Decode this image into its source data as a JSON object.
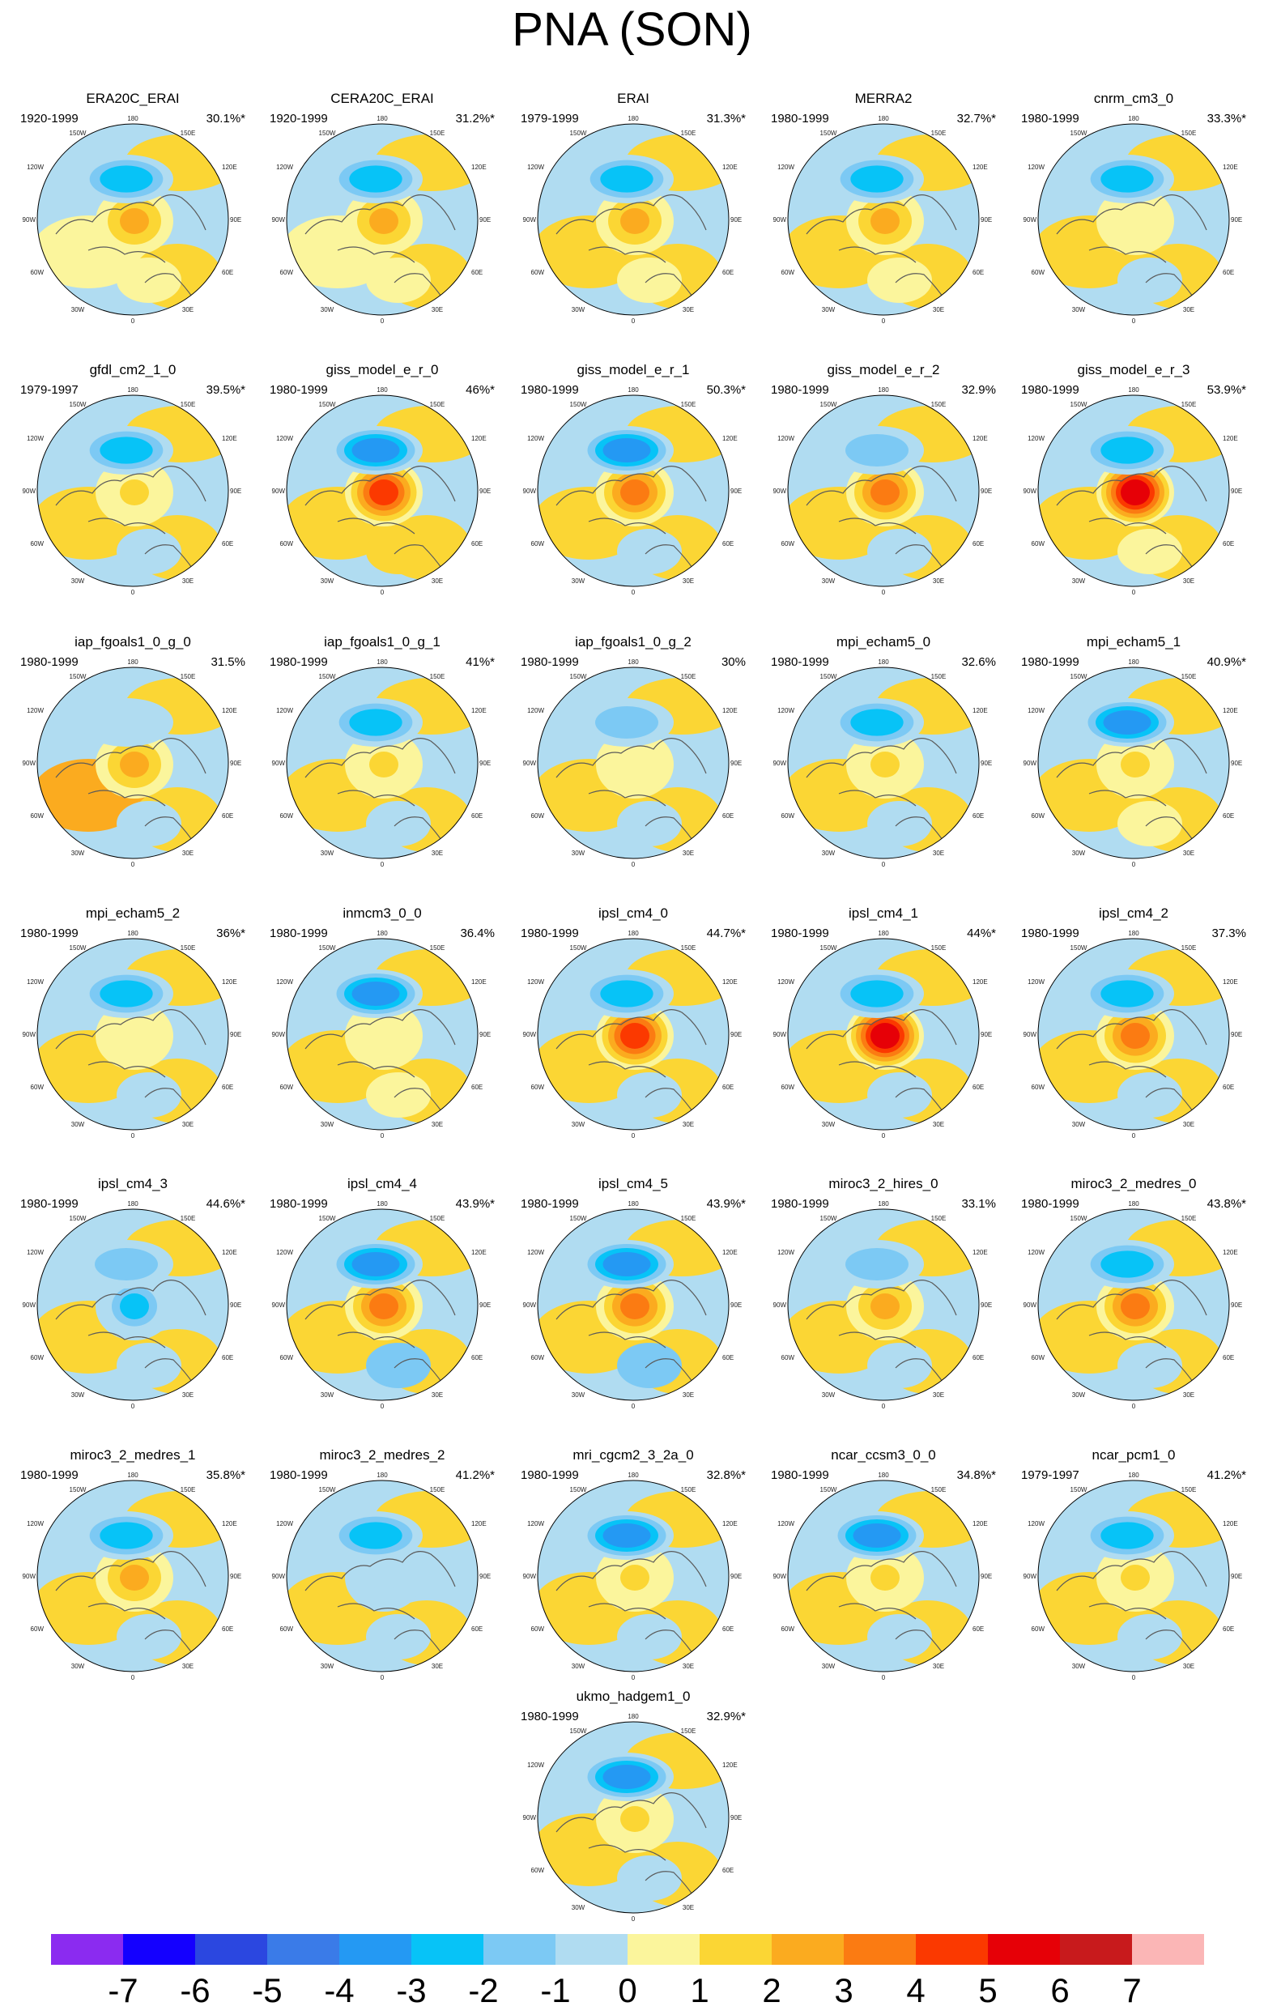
{
  "title": "PNA (SON)",
  "map_labels": {
    "top": "180",
    "bottom": "0",
    "top_left": "150W",
    "top_right": "150E",
    "upper_left": "120W",
    "upper_right": "120E",
    "mid_left": "90W",
    "mid_right": "90E",
    "lower_left": "60W",
    "lower_right": "60E",
    "bottom_left": "30W",
    "bottom_right": "30E"
  },
  "panels": [
    {
      "name": "ERA20C_ERAI",
      "period": "1920-1999",
      "percent": "30.1%*",
      "anomaly": {
        "arctic": 2,
        "pacific": -3,
        "northwest": 0,
        "europe": 0
      }
    },
    {
      "name": "CERA20C_ERAI",
      "period": "1920-1999",
      "percent": "31.2%*",
      "anomaly": {
        "arctic": 2,
        "pacific": -3,
        "northwest": 0,
        "europe": 0
      }
    },
    {
      "name": "ERAI",
      "period": "1979-1999",
      "percent": "31.3%*",
      "anomaly": {
        "arctic": 2,
        "pacific": -3,
        "northwest": 1,
        "europe": 0
      }
    },
    {
      "name": "MERRA2",
      "period": "1980-1999",
      "percent": "32.7%*",
      "anomaly": {
        "arctic": 2,
        "pacific": -3,
        "northwest": 1,
        "europe": 0
      }
    },
    {
      "name": "cnrm_cm3_0",
      "period": "1980-1999",
      "percent": "33.3%*",
      "anomaly": {
        "arctic": 0,
        "pacific": -3,
        "northwest": 1,
        "europe": -1
      }
    },
    {
      "name": "gfdl_cm2_1_0",
      "period": "1979-1997",
      "percent": "39.5%*",
      "anomaly": {
        "arctic": 1,
        "pacific": -3,
        "northwest": 1,
        "europe": -1
      }
    },
    {
      "name": "giss_model_e_r_0",
      "period": "1980-1999",
      "percent": "46%*",
      "anomaly": {
        "arctic": 4,
        "pacific": -4,
        "northwest": 1,
        "europe": 1
      }
    },
    {
      "name": "giss_model_e_r_1",
      "period": "1980-1999",
      "percent": "50.3%*",
      "anomaly": {
        "arctic": 3,
        "pacific": -4,
        "northwest": 1,
        "europe": -1
      }
    },
    {
      "name": "giss_model_e_r_2",
      "period": "1980-1999",
      "percent": "32.9%",
      "anomaly": {
        "arctic": 3,
        "pacific": -2,
        "northwest": 1,
        "europe": -1
      }
    },
    {
      "name": "giss_model_e_r_3",
      "period": "1980-1999",
      "percent": "53.9%*",
      "anomaly": {
        "arctic": 5,
        "pacific": -3,
        "northwest": 1,
        "europe": 0
      }
    },
    {
      "name": "iap_fgoals1_0_g_0",
      "period": "1980-1999",
      "percent": "31.5%",
      "anomaly": {
        "arctic": 2,
        "pacific": -1,
        "northwest": 2,
        "europe": -1
      }
    },
    {
      "name": "iap_fgoals1_0_g_1",
      "period": "1980-1999",
      "percent": "41%*",
      "anomaly": {
        "arctic": 1,
        "pacific": -3,
        "northwest": 1,
        "europe": -1
      }
    },
    {
      "name": "iap_fgoals1_0_g_2",
      "period": "1980-1999",
      "percent": "30%",
      "anomaly": {
        "arctic": 0,
        "pacific": -2,
        "northwest": 1,
        "europe": -1
      }
    },
    {
      "name": "mpi_echam5_0",
      "period": "1980-1999",
      "percent": "32.6%",
      "anomaly": {
        "arctic": 1,
        "pacific": -3,
        "northwest": 1,
        "europe": -1
      }
    },
    {
      "name": "mpi_echam5_1",
      "period": "1980-1999",
      "percent": "40.9%*",
      "anomaly": {
        "arctic": 1,
        "pacific": -4,
        "northwest": 1,
        "europe": 0
      }
    },
    {
      "name": "mpi_echam5_2",
      "period": "1980-1999",
      "percent": "36%*",
      "anomaly": {
        "arctic": 0,
        "pacific": -3,
        "northwest": 1,
        "europe": -1
      }
    },
    {
      "name": "inmcm3_0_0",
      "period": "1980-1999",
      "percent": "36.4%",
      "anomaly": {
        "arctic": 0,
        "pacific": -4,
        "northwest": 1,
        "europe": 0
      }
    },
    {
      "name": "ipsl_cm4_0",
      "period": "1980-1999",
      "percent": "44.7%*",
      "anomaly": {
        "arctic": 4,
        "pacific": -3,
        "northwest": 1,
        "europe": -1
      }
    },
    {
      "name": "ipsl_cm4_1",
      "period": "1980-1999",
      "percent": "44%*",
      "anomaly": {
        "arctic": 5,
        "pacific": -3,
        "northwest": 1,
        "europe": -1
      }
    },
    {
      "name": "ipsl_cm4_2",
      "period": "1980-1999",
      "percent": "37.3%",
      "anomaly": {
        "arctic": 3,
        "pacific": -3,
        "northwest": 1,
        "europe": -1
      }
    },
    {
      "name": "ipsl_cm4_3",
      "period": "1980-1999",
      "percent": "44.6%*",
      "anomaly": {
        "arctic": -3,
        "pacific": -2,
        "northwest": 1,
        "europe": -1
      }
    },
    {
      "name": "ipsl_cm4_4",
      "period": "1980-1999",
      "percent": "43.9%*",
      "anomaly": {
        "arctic": 3,
        "pacific": -4,
        "northwest": 1,
        "europe": -2
      }
    },
    {
      "name": "ipsl_cm4_5",
      "period": "1980-1999",
      "percent": "43.9%*",
      "anomaly": {
        "arctic": 3,
        "pacific": -4,
        "northwest": 1,
        "europe": -2
      }
    },
    {
      "name": "miroc3_2_hires_0",
      "period": "1980-1999",
      "percent": "33.1%",
      "anomaly": {
        "arctic": 2,
        "pacific": -2,
        "northwest": 1,
        "europe": -1
      }
    },
    {
      "name": "miroc3_2_medres_0",
      "period": "1980-1999",
      "percent": "43.8%*",
      "anomaly": {
        "arctic": 3,
        "pacific": -3,
        "northwest": 1,
        "europe": -1
      }
    },
    {
      "name": "miroc3_2_medres_1",
      "period": "1980-1999",
      "percent": "35.8%*",
      "anomaly": {
        "arctic": 2,
        "pacific": -3,
        "northwest": 1,
        "europe": -1
      }
    },
    {
      "name": "miroc3_2_medres_2",
      "period": "1980-1999",
      "percent": "41.2%*",
      "anomaly": {
        "arctic": -1,
        "pacific": -3,
        "northwest": 1,
        "europe": -1
      }
    },
    {
      "name": "mri_cgcm2_3_2a_0",
      "period": "1980-1999",
      "percent": "32.8%*",
      "anomaly": {
        "arctic": 1,
        "pacific": -4,
        "northwest": 1,
        "europe": -1
      }
    },
    {
      "name": "ncar_ccsm3_0_0",
      "period": "1980-1999",
      "percent": "34.8%*",
      "anomaly": {
        "arctic": 1,
        "pacific": -4,
        "northwest": 1,
        "europe": -1
      }
    },
    {
      "name": "ncar_pcm1_0",
      "period": "1979-1997",
      "percent": "41.2%*",
      "anomaly": {
        "arctic": 1,
        "pacific": -3,
        "northwest": 1,
        "europe": -1
      }
    },
    {
      "name": "ukmo_hadgem1_0",
      "period": "1980-1999",
      "percent": "32.9%*",
      "anomaly": {
        "arctic": 1,
        "pacific": -4,
        "northwest": 1,
        "europe": -1
      }
    }
  ],
  "colorbar": {
    "ticks": [
      "-7",
      "-6",
      "-5",
      "-4",
      "-3",
      "-2",
      "-1",
      "0",
      "1",
      "2",
      "3",
      "4",
      "5",
      "6",
      "7"
    ],
    "colors": [
      "#8b2bf0",
      "#1400ff",
      "#2b47e0",
      "#3a7be8",
      "#2499f3",
      "#07c3f7",
      "#7cc9f4",
      "#b0dcf1",
      "#fbf59c",
      "#fbd634",
      "#fbab1f",
      "#fb7b12",
      "#fb3900",
      "#e60007",
      "#c81a1c",
      "#fbb6b6"
    ]
  }
}
